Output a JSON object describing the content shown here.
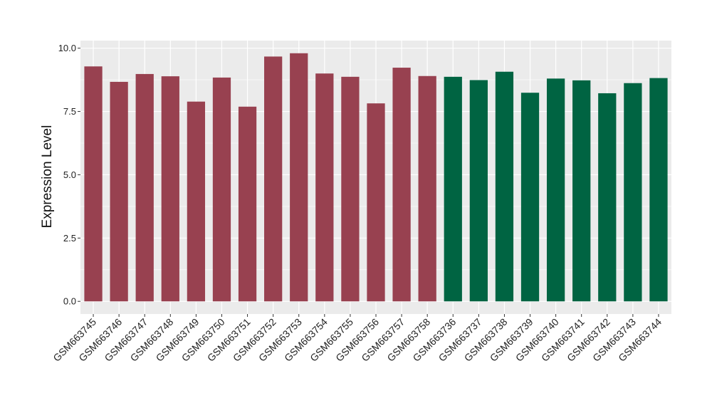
{
  "chart_data": {
    "type": "bar",
    "ylabel": "Expression Level",
    "xlabel": "",
    "ylim": [
      -0.5,
      10.3
    ],
    "yticks": [
      0.0,
      2.5,
      5.0,
      7.5,
      10.0
    ],
    "ytick_labels": [
      "0.0",
      "2.5",
      "5.0",
      "7.5",
      "10.0"
    ],
    "grid": true,
    "panel_background": "#EBEBEB",
    "grid_color": "#FFFFFF",
    "categories": [
      "GSM663745",
      "GSM663746",
      "GSM663747",
      "GSM663748",
      "GSM663749",
      "GSM663750",
      "GSM663751",
      "GSM663752",
      "GSM663753",
      "GSM663754",
      "GSM663755",
      "GSM663756",
      "GSM663757",
      "GSM663758",
      "GSM663736",
      "GSM663737",
      "GSM663738",
      "GSM663739",
      "GSM663740",
      "GSM663741",
      "GSM663742",
      "GSM663743",
      "GSM663744"
    ],
    "values": [
      9.28,
      8.67,
      8.98,
      8.89,
      7.89,
      8.84,
      7.69,
      9.67,
      9.8,
      9.0,
      8.87,
      7.82,
      9.23,
      8.9,
      8.87,
      8.74,
      9.07,
      8.24,
      8.8,
      8.73,
      8.22,
      8.62,
      8.82
    ],
    "bar_colors": [
      "#984150",
      "#984150",
      "#984150",
      "#984150",
      "#984150",
      "#984150",
      "#984150",
      "#984150",
      "#984150",
      "#984150",
      "#984150",
      "#984150",
      "#984150",
      "#984150",
      "#006442",
      "#006442",
      "#006442",
      "#006442",
      "#006442",
      "#006442",
      "#006442",
      "#006442",
      "#006442"
    ]
  }
}
